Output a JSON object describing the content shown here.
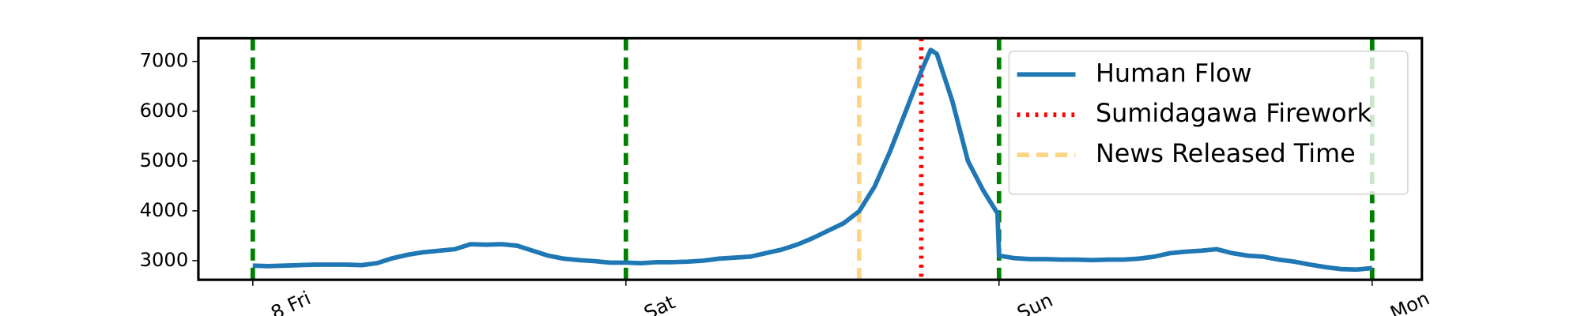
{
  "chart_data": {
    "type": "line",
    "x": [
      0,
      1,
      2,
      3,
      4,
      5,
      6,
      7,
      8,
      9,
      10,
      11,
      12,
      13,
      14,
      15,
      16,
      17,
      18,
      19,
      20,
      21,
      22,
      23,
      24,
      25,
      26,
      27,
      28,
      29,
      30,
      31,
      32,
      33,
      34,
      35,
      36,
      37,
      38,
      39,
      40,
      41,
      42,
      43,
      43.6,
      44,
      45,
      46,
      47,
      47.5,
      47.9,
      48,
      49,
      50,
      51,
      52,
      53,
      54,
      55,
      56,
      57,
      58,
      59,
      60,
      61,
      62,
      63,
      64,
      65,
      66,
      67,
      68,
      69,
      70,
      71,
      72
    ],
    "series": [
      {
        "name": "Human Flow",
        "color": "#1f77b4",
        "values": [
          2900,
          2890,
          2900,
          2910,
          2920,
          2920,
          2920,
          2910,
          2950,
          3050,
          3120,
          3170,
          3200,
          3230,
          3330,
          3320,
          3330,
          3300,
          3200,
          3100,
          3040,
          3010,
          2990,
          2960,
          2960,
          2950,
          2970,
          2970,
          2980,
          3000,
          3040,
          3060,
          3080,
          3150,
          3220,
          3320,
          3450,
          3600,
          3750,
          3990,
          4490,
          5200,
          6000,
          6800,
          7230,
          7150,
          6200,
          5000,
          4400,
          4150,
          3950,
          3100,
          3050,
          3030,
          3030,
          3020,
          3020,
          3010,
          3020,
          3020,
          3040,
          3080,
          3150,
          3180,
          3200,
          3230,
          3150,
          3100,
          3080,
          3020,
          2980,
          2920,
          2870,
          2830,
          2820,
          2850
        ]
      }
    ],
    "vlines": [
      {
        "name": "Sumidagawa Firework",
        "x": 43,
        "color": "#ff0000",
        "style": "dotted"
      },
      {
        "name": "News Released Time",
        "x": 39,
        "color": "#fdd484",
        "style": "dashed"
      }
    ],
    "day_line_color": "#008000",
    "xlim": [
      -3.5,
      75.2
    ],
    "xticks": [
      {
        "value": 0,
        "label": "8 Fri"
      },
      {
        "value": 24,
        "label": "Sat"
      },
      {
        "value": 48,
        "label": "Sun"
      },
      {
        "value": 72,
        "label": "Mon"
      }
    ],
    "ylim": [
      2616,
      7465
    ],
    "yticks": [
      3000,
      4000,
      5000,
      6000,
      7000
    ],
    "legend": "upper right"
  }
}
